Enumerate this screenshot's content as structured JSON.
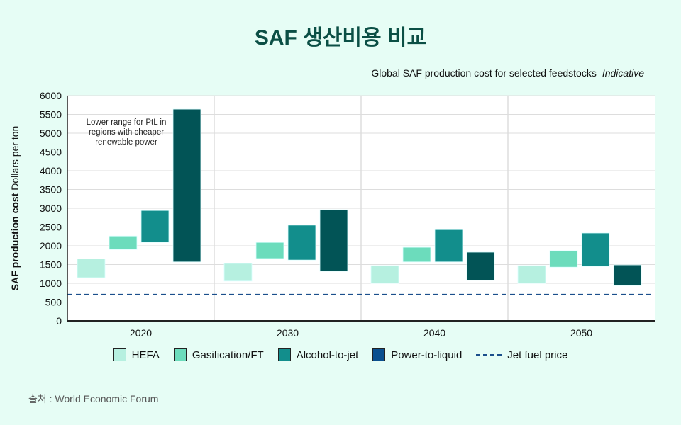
{
  "title": "SAF 생산비용 비교",
  "subtitle": "Global SAF production cost for selected feedstocks",
  "subtitle_note": "Indicative",
  "source": "출처 : World Economic Forum",
  "chart_data": {
    "type": "bar",
    "subtype": "floating-range",
    "ylabel_bold": "SAF production cost",
    "ylabel": "Dollars per ton",
    "ylim": [
      0,
      6000
    ],
    "yticks": [
      0,
      500,
      1000,
      1500,
      2000,
      2500,
      3000,
      3500,
      4000,
      4500,
      5000,
      5500,
      6000
    ],
    "grid": true,
    "legend_position": "bottom",
    "categories": [
      "2020",
      "2030",
      "2040",
      "2050"
    ],
    "series": [
      {
        "name": "HEFA",
        "color": "#b6f0e0",
        "ranges": [
          [
            1150,
            1650
          ],
          [
            1060,
            1530
          ],
          [
            1000,
            1470
          ],
          [
            1000,
            1470
          ]
        ]
      },
      {
        "name": "Gasification/FT",
        "color": "#6cdcbc",
        "ranges": [
          [
            1900,
            2260
          ],
          [
            1660,
            2090
          ],
          [
            1570,
            1960
          ],
          [
            1430,
            1870
          ]
        ]
      },
      {
        "name": "Alcohol-to-jet",
        "color": "#128e8c",
        "ranges": [
          [
            2090,
            2940
          ],
          [
            1620,
            2550
          ],
          [
            1570,
            2430
          ],
          [
            1450,
            2340
          ]
        ]
      },
      {
        "name": "Power-to-liquid",
        "color": "#025456",
        "legend_color": "#0a4f8f",
        "ranges": [
          [
            1570,
            5640
          ],
          [
            1320,
            2960
          ],
          [
            1080,
            1830
          ],
          [
            940,
            1490
          ]
        ]
      }
    ],
    "reference_line": {
      "name": "Jet fuel price",
      "value": 700,
      "color": "#1b4f8c"
    },
    "annotation": "Lower range for PtL in regions with cheaper renewable power"
  }
}
